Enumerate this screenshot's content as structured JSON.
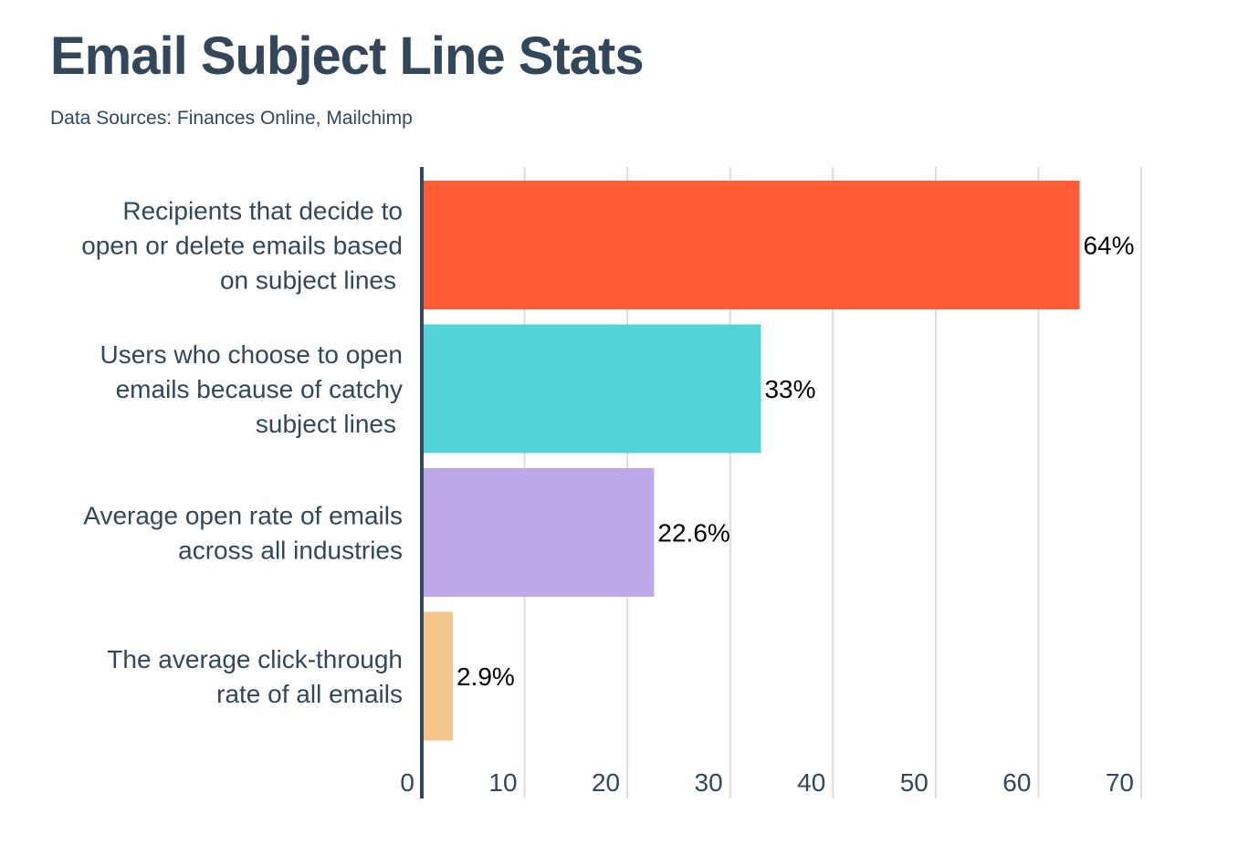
{
  "chart_data": {
    "type": "bar",
    "orientation": "horizontal",
    "title": "Email Subject Line Stats",
    "subtitle": "Data Sources: Finances Online, Mailchimp",
    "categories": [
      [
        "Recipients that decide to",
        "open or delete emails based",
        "on subject lines"
      ],
      [
        "Users who choose to open",
        "emails because of catchy",
        "subject lines"
      ],
      [
        "Average open rate of emails",
        "across all industries"
      ],
      [
        "The average click-through",
        "rate of all emails"
      ]
    ],
    "values": [
      64,
      33,
      22.6,
      2.9
    ],
    "data_labels": [
      "64%",
      "33%",
      "22.6%",
      "2.9%"
    ],
    "colors": [
      "#ff5c35",
      "#51d3d9",
      "#bda9ea",
      "#f5c68c"
    ],
    "xlim": [
      0,
      70
    ],
    "xticks": [
      "0",
      "10",
      "20",
      "30",
      "40",
      "50",
      "60",
      "70"
    ],
    "grid": true,
    "axis_color": "#33475b",
    "grid_color": "#dddddd"
  }
}
